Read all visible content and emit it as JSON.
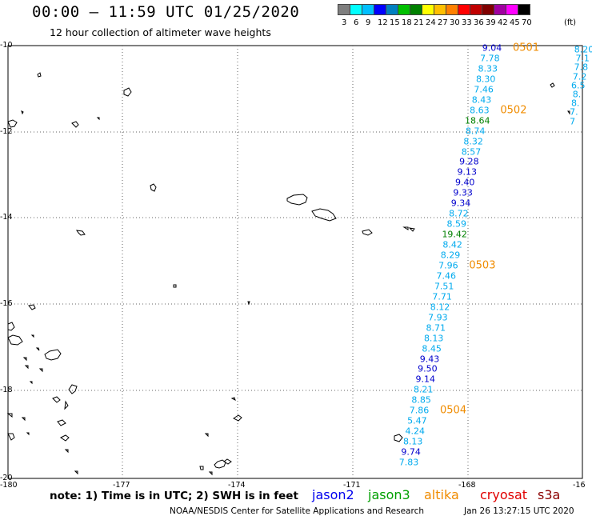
{
  "header": {
    "title": "00:00 – 11:59 UTC 01/25/2020",
    "subtitle": "12 hour collection of altimeter wave heights"
  },
  "colorbar": {
    "colors": [
      "#7f7f7f",
      "#00ffff",
      "#00bfff",
      "#0000ff",
      "#0080c0",
      "#00c000",
      "#008000",
      "#ffff00",
      "#ffbf00",
      "#ff8000",
      "#ff0000",
      "#c00000",
      "#800000",
      "#a000a0",
      "#ff00ff",
      "#000000"
    ],
    "labels": [
      "3",
      "6",
      "9",
      "12",
      "15",
      "18",
      "21",
      "24",
      "27",
      "30",
      "33",
      "36",
      "39",
      "42",
      "45",
      "70",
      "(ft)"
    ]
  },
  "map": {
    "lon_ticks": [
      "-180",
      "-177",
      "-174",
      "-171",
      "-168",
      "-16"
    ],
    "lat_ticks": [
      "-10",
      "-12",
      "-14",
      "-16",
      "-18",
      "-20"
    ]
  },
  "wave_heights": [
    {
      "v": "9.04",
      "c": "#0000cd"
    },
    {
      "v": "7.78",
      "c": "#00aaee"
    },
    {
      "v": "8.33",
      "c": "#00aaee"
    },
    {
      "v": "8.30",
      "c": "#00aaee"
    },
    {
      "v": "7.46",
      "c": "#00aaee"
    },
    {
      "v": "8.43",
      "c": "#00aaee"
    },
    {
      "v": "8.63",
      "c": "#00aaee"
    },
    {
      "v": "18.64",
      "c": "#008000"
    },
    {
      "v": "8.74",
      "c": "#00aaee"
    },
    {
      "v": "8.32",
      "c": "#00aaee"
    },
    {
      "v": "8.57",
      "c": "#00aaee"
    },
    {
      "v": "9.28",
      "c": "#0000cd"
    },
    {
      "v": "9.13",
      "c": "#0000cd"
    },
    {
      "v": "9.40",
      "c": "#0000cd"
    },
    {
      "v": "9.33",
      "c": "#0000cd"
    },
    {
      "v": "9.34",
      "c": "#0000cd"
    },
    {
      "v": "8.72",
      "c": "#00aaee"
    },
    {
      "v": "8.59",
      "c": "#00aaee"
    },
    {
      "v": "19.42",
      "c": "#008000"
    },
    {
      "v": "8.42",
      "c": "#00aaee"
    },
    {
      "v": "8.29",
      "c": "#00aaee"
    },
    {
      "v": "7.96",
      "c": "#00aaee"
    },
    {
      "v": "7.46",
      "c": "#00aaee"
    },
    {
      "v": "7.51",
      "c": "#00aaee"
    },
    {
      "v": "7.71",
      "c": "#00aaee"
    },
    {
      "v": "8.12",
      "c": "#00aaee"
    },
    {
      "v": "7.93",
      "c": "#00aaee"
    },
    {
      "v": "8.71",
      "c": "#00aaee"
    },
    {
      "v": "8.13",
      "c": "#00aaee"
    },
    {
      "v": "8.45",
      "c": "#00aaee"
    },
    {
      "v": "9.43",
      "c": "#0000cd"
    },
    {
      "v": "9.50",
      "c": "#0000cd"
    },
    {
      "v": "9.14",
      "c": "#0000cd"
    },
    {
      "v": "8.21",
      "c": "#00aaee"
    },
    {
      "v": "8.85",
      "c": "#00aaee"
    },
    {
      "v": "7.86",
      "c": "#00aaee"
    },
    {
      "v": "5.47",
      "c": "#00aaee"
    },
    {
      "v": "4.24",
      "c": "#00aaee"
    },
    {
      "v": "8.13",
      "c": "#00aaee"
    },
    {
      "v": "9.74",
      "c": "#0000cd"
    },
    {
      "v": "7.83",
      "c": "#00aaee"
    }
  ],
  "right_edge_values": [
    "8.20",
    "7.1",
    "7.8",
    "7.2",
    "6.5",
    "8.",
    "8.",
    "7.",
    "7"
  ],
  "pass_labels": [
    "0501",
    "0502",
    "0503",
    "0504"
  ],
  "footer": {
    "note": "note: 1) Time is in UTC; 2) SWH is in feet",
    "satellites": [
      {
        "name": "jason2",
        "color": "#0000ee"
      },
      {
        "name": "jason3",
        "color": "#00a000"
      },
      {
        "name": "altika",
        "color": "#f08c00"
      },
      {
        "name": "cryosat",
        "color": "#e00000"
      },
      {
        "name": "s3a",
        "color": "#8b0000"
      }
    ],
    "credit": "NOAA/NESDIS Center for Satellite Applications and Research",
    "timestamp": "Jan 26 13:27:15 UTC 2020"
  }
}
